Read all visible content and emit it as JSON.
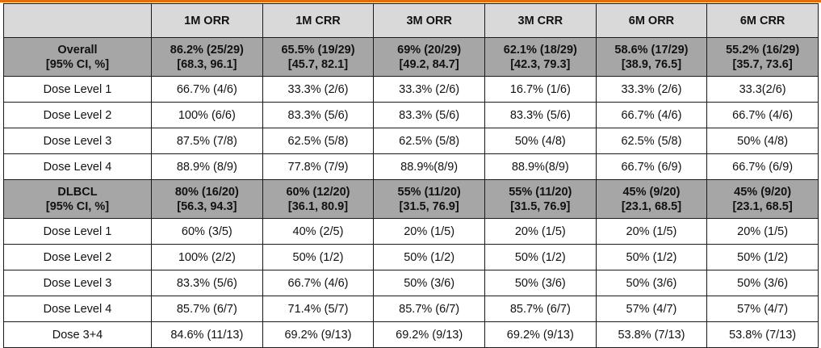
{
  "table": {
    "headers": [
      "",
      "1M ORR",
      "1M CRR",
      "3M ORR",
      "3M CRR",
      "6M ORR",
      "6M CRR"
    ],
    "groups": [
      {
        "summary": {
          "label_line1": "Overall",
          "label_line2": "[95% CI, %]",
          "cells": [
            {
              "line1": "86.2% (25/29)",
              "line2": "[68.3, 96.1]"
            },
            {
              "line1": "65.5% (19/29)",
              "line2": "[45.7, 82.1]"
            },
            {
              "line1": "69% (20/29)",
              "line2": "[49.2, 84.7]"
            },
            {
              "line1": "62.1% (18/29)",
              "line2": "[42.3, 79.3]"
            },
            {
              "line1": "58.6% (17/29)",
              "line2": "[38.9, 76.5]"
            },
            {
              "line1": "55.2% (16/29)",
              "line2": "[35.7, 73.6]"
            }
          ]
        },
        "rows": [
          {
            "label": "Dose Level 1",
            "cells": [
              "66.7% (4/6)",
              "33.3% (2/6)",
              "33.3% (2/6)",
              "16.7% (1/6)",
              "33.3% (2/6)",
              "33.3(2/6)"
            ]
          },
          {
            "label": "Dose Level 2",
            "cells": [
              "100% (6/6)",
              "83.3% (5/6)",
              "83.3% (5/6)",
              "83.3% (5/6)",
              "66.7% (4/6)",
              "66.7% (4/6)"
            ]
          },
          {
            "label": "Dose Level 3",
            "cells": [
              "87.5% (7/8)",
              "62.5% (5/8)",
              "62.5% (5/8)",
              "50% (4/8)",
              "62.5% (5/8)",
              "50% (4/8)"
            ]
          },
          {
            "label": "Dose Level 4",
            "cells": [
              "88.9% (8/9)",
              "77.8% (7/9)",
              "88.9%(8/9)",
              "88.9%(8/9)",
              "66.7% (6/9)",
              "66.7% (6/9)"
            ]
          }
        ]
      },
      {
        "summary": {
          "label_line1": "DLBCL",
          "label_line2": "[95% CI, %]",
          "cells": [
            {
              "line1": "80% (16/20)",
              "line2": "[56.3, 94.3]"
            },
            {
              "line1": "60% (12/20)",
              "line2": "[36.1, 80.9]"
            },
            {
              "line1": "55% (11/20)",
              "line2": "[31.5, 76.9]"
            },
            {
              "line1": "55% (11/20)",
              "line2": "[31.5, 76.9]"
            },
            {
              "line1": "45% (9/20)",
              "line2": "[23.1, 68.5]"
            },
            {
              "line1": "45% (9/20)",
              "line2": "[23.1, 68.5]"
            }
          ]
        },
        "rows": [
          {
            "label": "Dose Level 1",
            "cells": [
              "60% (3/5)",
              "40% (2/5)",
              "20% (1/5)",
              "20% (1/5)",
              "20% (1/5)",
              "20% (1/5)"
            ]
          },
          {
            "label": "Dose Level 2",
            "cells": [
              "100% (2/2)",
              "50% (1/2)",
              "50% (1/2)",
              "50% (1/2)",
              "50% (1/2)",
              "50% (1/2)"
            ]
          },
          {
            "label": "Dose Level 3",
            "cells": [
              "83.3% (5/6)",
              "66.7% (4/6)",
              "50% (3/6)",
              "50% (3/6)",
              "50% (3/6)",
              "50% (3/6)"
            ]
          },
          {
            "label": "Dose Level 4",
            "cells": [
              "85.7% (6/7)",
              "71.4% (5/7)",
              "85.7% (6/7)",
              "85.7% (6/7)",
              "57% (4/7)",
              "57% (4/7)"
            ]
          },
          {
            "label": "Dose 3+4",
            "cells": [
              "84.6% (11/13)",
              "69.2% (9/13)",
              "69.2% (9/13)",
              "69.2% (9/13)",
              "53.8% (7/13)",
              "53.8% (7/13)"
            ]
          }
        ]
      }
    ]
  },
  "colors": {
    "accent_bar": "#e46c0a",
    "header_bg": "#d9d9d9",
    "summary_bg": "#a6a6a6",
    "border": "#1a1a1a"
  }
}
